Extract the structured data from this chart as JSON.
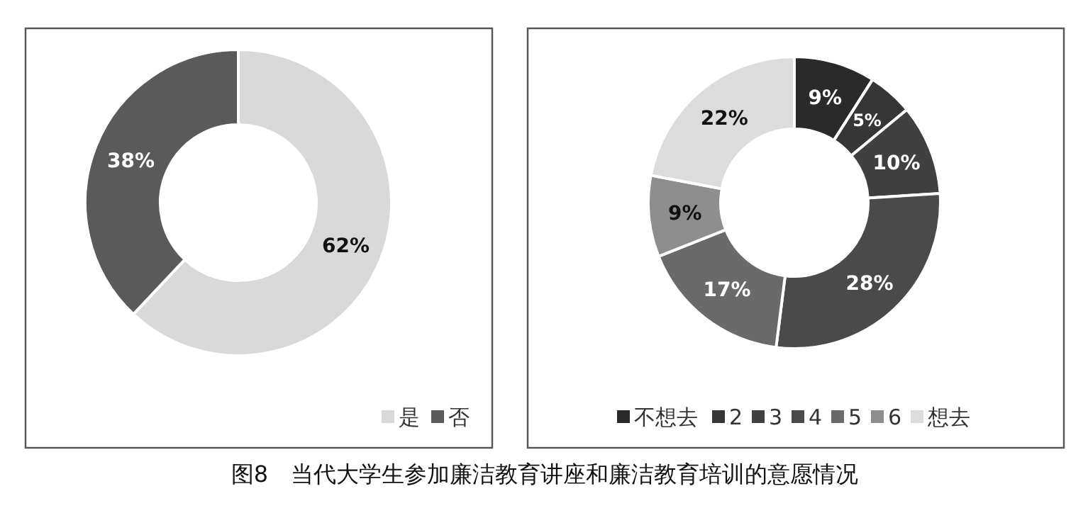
{
  "chart_data": [
    {
      "type": "donut",
      "categories": [
        "是",
        "否"
      ],
      "values": [
        62,
        38
      ],
      "colors": [
        "#d9d9d9",
        "#5a5a5a"
      ],
      "value_labels": [
        "62%",
        "38%"
      ],
      "legend": "bottom right",
      "annotations": [
        "图8　当代大学生参加廉洁教育讲座和廉洁教育培训的意愿情况"
      ]
    },
    {
      "type": "donut",
      "categories": [
        "不想去",
        "2",
        "3",
        "4",
        "5",
        "6",
        "想去"
      ],
      "values": [
        9,
        5,
        10,
        28,
        17,
        9,
        22
      ],
      "colors": [
        "#2a2a2a",
        "#363636",
        "#404040",
        "#4a4a4a",
        "#6a6a6a",
        "#8e8e8e",
        "#dcdcdc"
      ],
      "value_labels": [
        "9%",
        "5%",
        "10%",
        "28%",
        "17%",
        "9%",
        "22%"
      ],
      "legend": "bottom"
    }
  ]
}
